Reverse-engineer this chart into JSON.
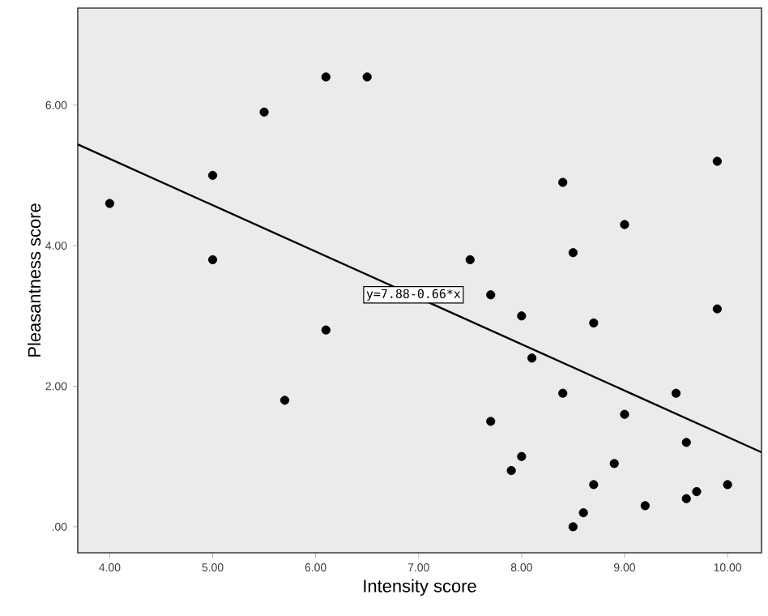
{
  "chart_data": {
    "type": "scatter",
    "xlabel": "Intensity score",
    "ylabel": "Pleasantness score",
    "xlim": [
      3.69,
      10.33
    ],
    "ylim": [
      -0.37,
      7.38
    ],
    "xticks": [
      {
        "value": 4,
        "label": "4.00"
      },
      {
        "value": 5,
        "label": "5.00"
      },
      {
        "value": 6,
        "label": "6.00"
      },
      {
        "value": 7,
        "label": "7.00"
      },
      {
        "value": 8,
        "label": "8.00"
      },
      {
        "value": 9,
        "label": "9.00"
      },
      {
        "value": 10,
        "label": "10.00"
      }
    ],
    "yticks": [
      {
        "value": 0,
        "label": ".00"
      },
      {
        "value": 2,
        "label": "2.00"
      },
      {
        "value": 4,
        "label": "4.00"
      },
      {
        "value": 6,
        "label": "6.00"
      }
    ],
    "grid": false,
    "series": [
      {
        "color": "#000000",
        "x": [
          4.0,
          5.0,
          5.0,
          5.5,
          5.7,
          6.1,
          6.1,
          6.5,
          7.5,
          7.7,
          7.7,
          7.9,
          8.0,
          8.0,
          8.1,
          8.4,
          8.4,
          8.5,
          8.5,
          8.6,
          8.7,
          8.7,
          8.9,
          9.0,
          9.0,
          9.2,
          9.5,
          9.6,
          9.6,
          9.7,
          9.9,
          9.9,
          10.0
        ],
        "values": [
          4.6,
          5.0,
          3.8,
          5.9,
          1.8,
          6.4,
          2.8,
          6.4,
          3.8,
          3.3,
          1.5,
          0.8,
          3.0,
          1.0,
          2.4,
          4.9,
          1.9,
          3.9,
          0.0,
          0.2,
          2.9,
          0.6,
          0.9,
          4.3,
          1.6,
          0.3,
          1.9,
          1.2,
          0.4,
          0.5,
          5.2,
          3.1,
          0.6
        ]
      },
      {
        "type": "line",
        "color": "#000000",
        "x": [
          3.69,
          10.33
        ],
        "values": [
          5.44,
          1.06
        ]
      }
    ],
    "annotations": [
      {
        "text": "y=7.88-0.66*x",
        "x": 6.95,
        "y": 3.3
      }
    ]
  }
}
